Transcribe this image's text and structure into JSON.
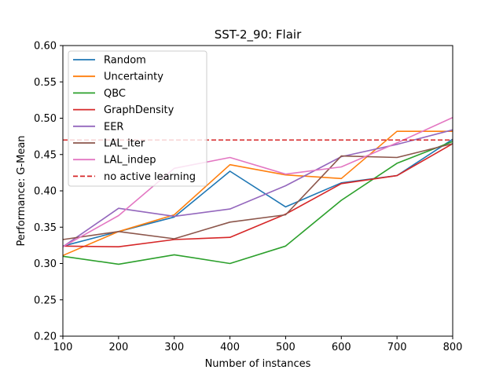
{
  "chart_data": {
    "type": "line",
    "title": "SST-2_90: Flair",
    "xlabel": "Number of instances",
    "ylabel": "Performance: G-Mean",
    "xlim": [
      100,
      800
    ],
    "ylim": [
      0.2,
      0.6
    ],
    "xticks": [
      100,
      200,
      300,
      400,
      500,
      600,
      700,
      800
    ],
    "yticks": [
      0.2,
      0.25,
      0.3,
      0.35,
      0.4,
      0.45,
      0.5,
      0.55,
      0.6
    ],
    "grid": false,
    "legend_position": "top-left",
    "x": [
      100,
      200,
      300,
      400,
      500,
      600,
      700,
      800
    ],
    "series": [
      {
        "name": "Random",
        "color": "#1f77b4",
        "values": [
          0.324,
          0.344,
          0.364,
          0.427,
          0.378,
          0.411,
          0.421,
          0.471
        ]
      },
      {
        "name": "Uncertainty",
        "color": "#ff7f0e",
        "values": [
          0.311,
          0.344,
          0.367,
          0.436,
          0.422,
          0.417,
          0.482,
          0.482
        ]
      },
      {
        "name": "QBC",
        "color": "#2ca02c",
        "values": [
          0.31,
          0.299,
          0.312,
          0.3,
          0.324,
          0.387,
          0.438,
          0.468
        ]
      },
      {
        "name": "GraphDensity",
        "color": "#d62728",
        "values": [
          0.324,
          0.323,
          0.333,
          0.336,
          0.368,
          0.41,
          0.421,
          0.465
        ]
      },
      {
        "name": "EER",
        "color": "#9467bd",
        "values": [
          0.323,
          0.376,
          0.365,
          0.375,
          0.407,
          0.447,
          0.464,
          0.484
        ]
      },
      {
        "name": "LAL_iter",
        "color": "#8c564b",
        "values": [
          0.333,
          0.344,
          0.334,
          0.357,
          0.367,
          0.448,
          0.446,
          0.465
        ]
      },
      {
        "name": "LAL_indep",
        "color": "#e377c2",
        "values": [
          0.323,
          0.366,
          0.431,
          0.446,
          0.423,
          0.433,
          0.466,
          0.501
        ]
      }
    ],
    "reference_line": {
      "name": "no active learning",
      "color": "#d62728",
      "value": 0.47,
      "style": "dashed"
    }
  }
}
